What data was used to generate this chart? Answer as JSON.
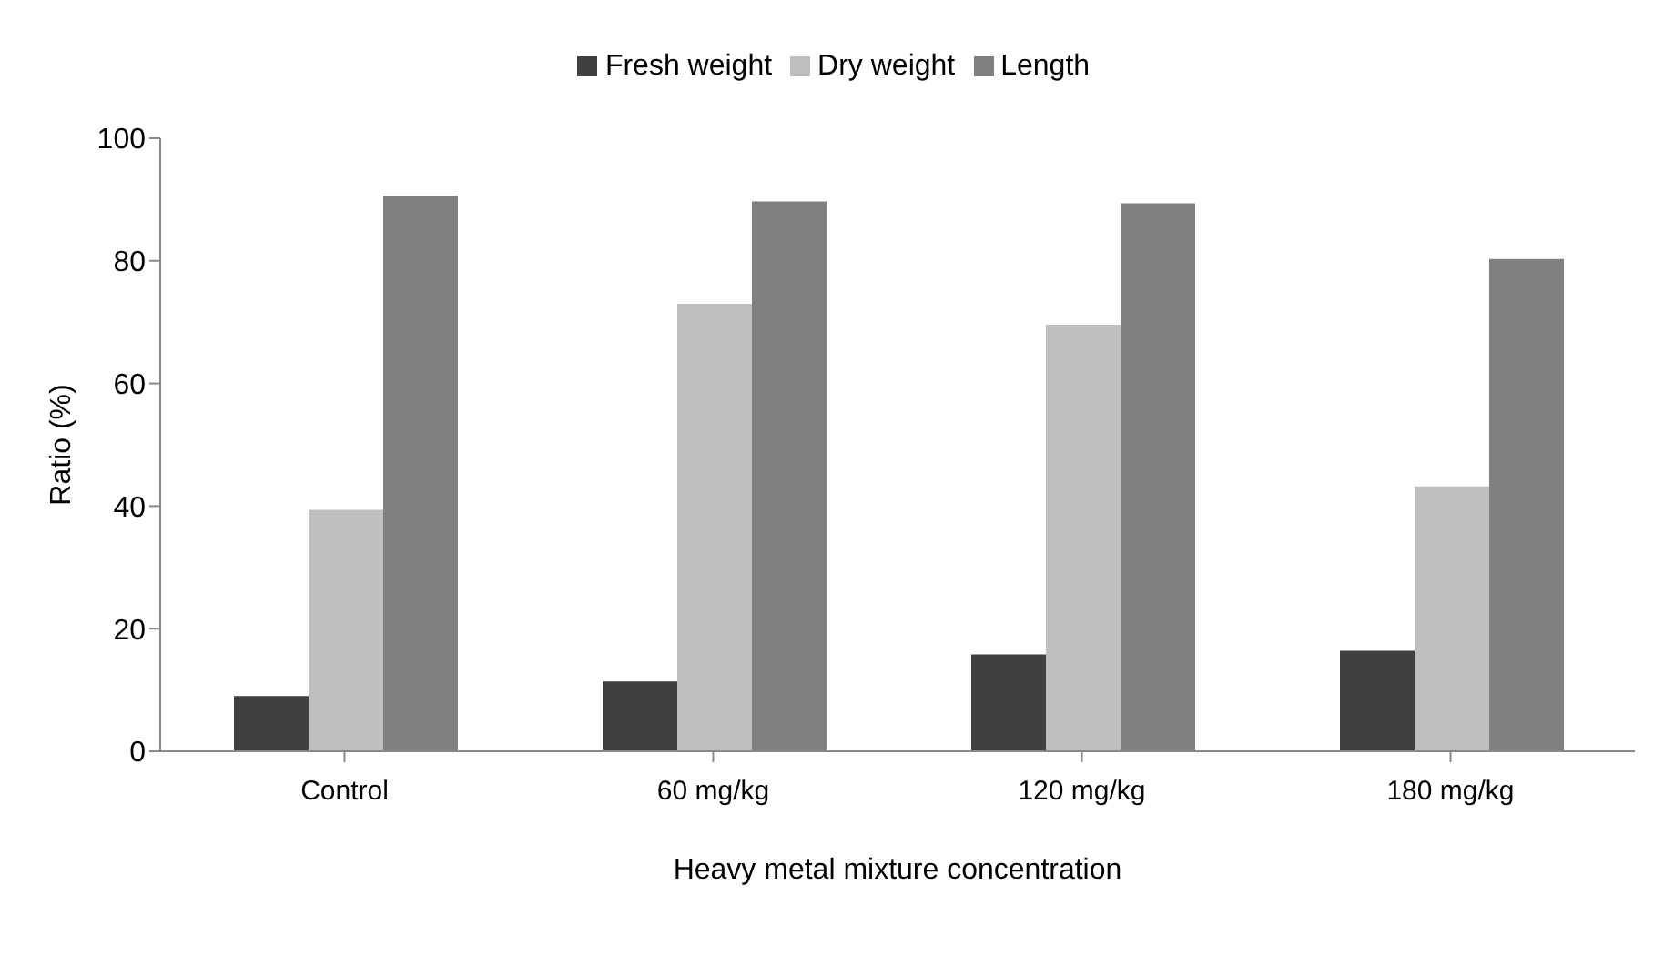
{
  "chart_data": {
    "type": "bar",
    "xlabel": "Heavy metal mixture concentration",
    "ylabel": "Ratio (%)",
    "categories": [
      "Control",
      "60 mg/kg",
      "120 mg/kg",
      "180 mg/kg"
    ],
    "series": [
      {
        "name": "Fresh weight",
        "color": "#404040",
        "values": [
          9.0,
          11.4,
          15.8,
          16.4
        ]
      },
      {
        "name": "Dry weight",
        "color": "#bfbfbf",
        "values": [
          39.4,
          73.0,
          69.6,
          43.2
        ]
      },
      {
        "name": "Length",
        "color": "#808080",
        "values": [
          90.6,
          89.7,
          89.4,
          80.3
        ]
      }
    ],
    "ylim": [
      0,
      100
    ],
    "yticks": [
      0,
      20,
      40,
      60,
      80,
      100
    ],
    "grid": false,
    "legend": "top"
  }
}
